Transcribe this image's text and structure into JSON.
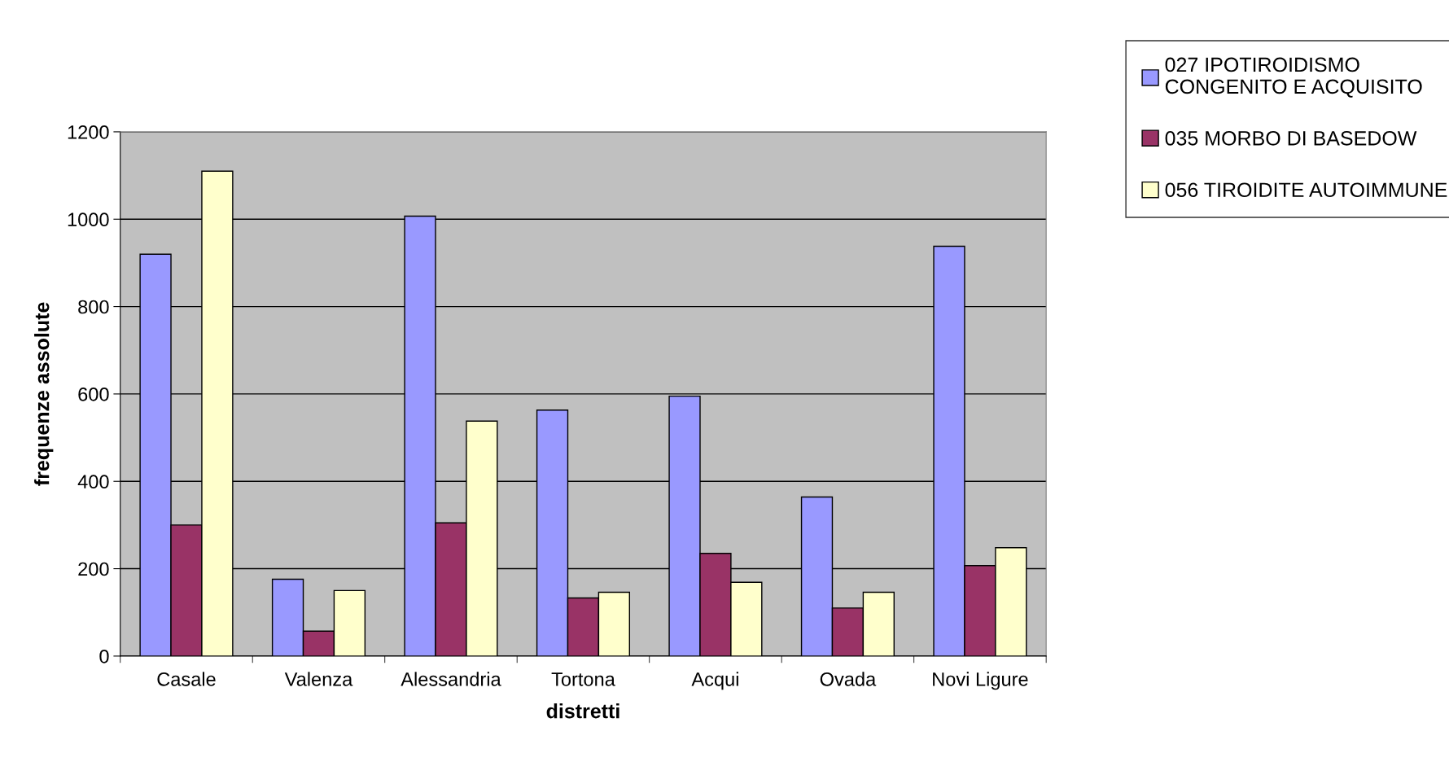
{
  "chart_data": {
    "type": "bar",
    "xlabel": "distretti",
    "ylabel": "frequenze assolute",
    "categories": [
      "Casale",
      "Valenza",
      "Alessandria",
      "Tortona",
      "Acqui",
      "Ovada",
      "Novi Ligure"
    ],
    "series": [
      {
        "name": "027 IPOTIROIDISMO\nCONGENITO E ACQUISITO",
        "color": "#9999ff",
        "values": [
          920,
          176,
          1007,
          563,
          595,
          364,
          938
        ]
      },
      {
        "name": "035 MORBO DI BASEDOW",
        "color": "#993366",
        "values": [
          300,
          57,
          305,
          133,
          235,
          110,
          207
        ]
      },
      {
        "name": "056 TIROIDITE AUTOIMMUNE",
        "color": "#ffffcc",
        "values": [
          1110,
          150,
          538,
          146,
          169,
          146,
          248
        ]
      }
    ],
    "ylim": [
      0,
      1200
    ],
    "yticks": [
      0,
      200,
      400,
      600,
      800,
      1000,
      1200
    ],
    "grid": "y",
    "legend": "top right"
  }
}
